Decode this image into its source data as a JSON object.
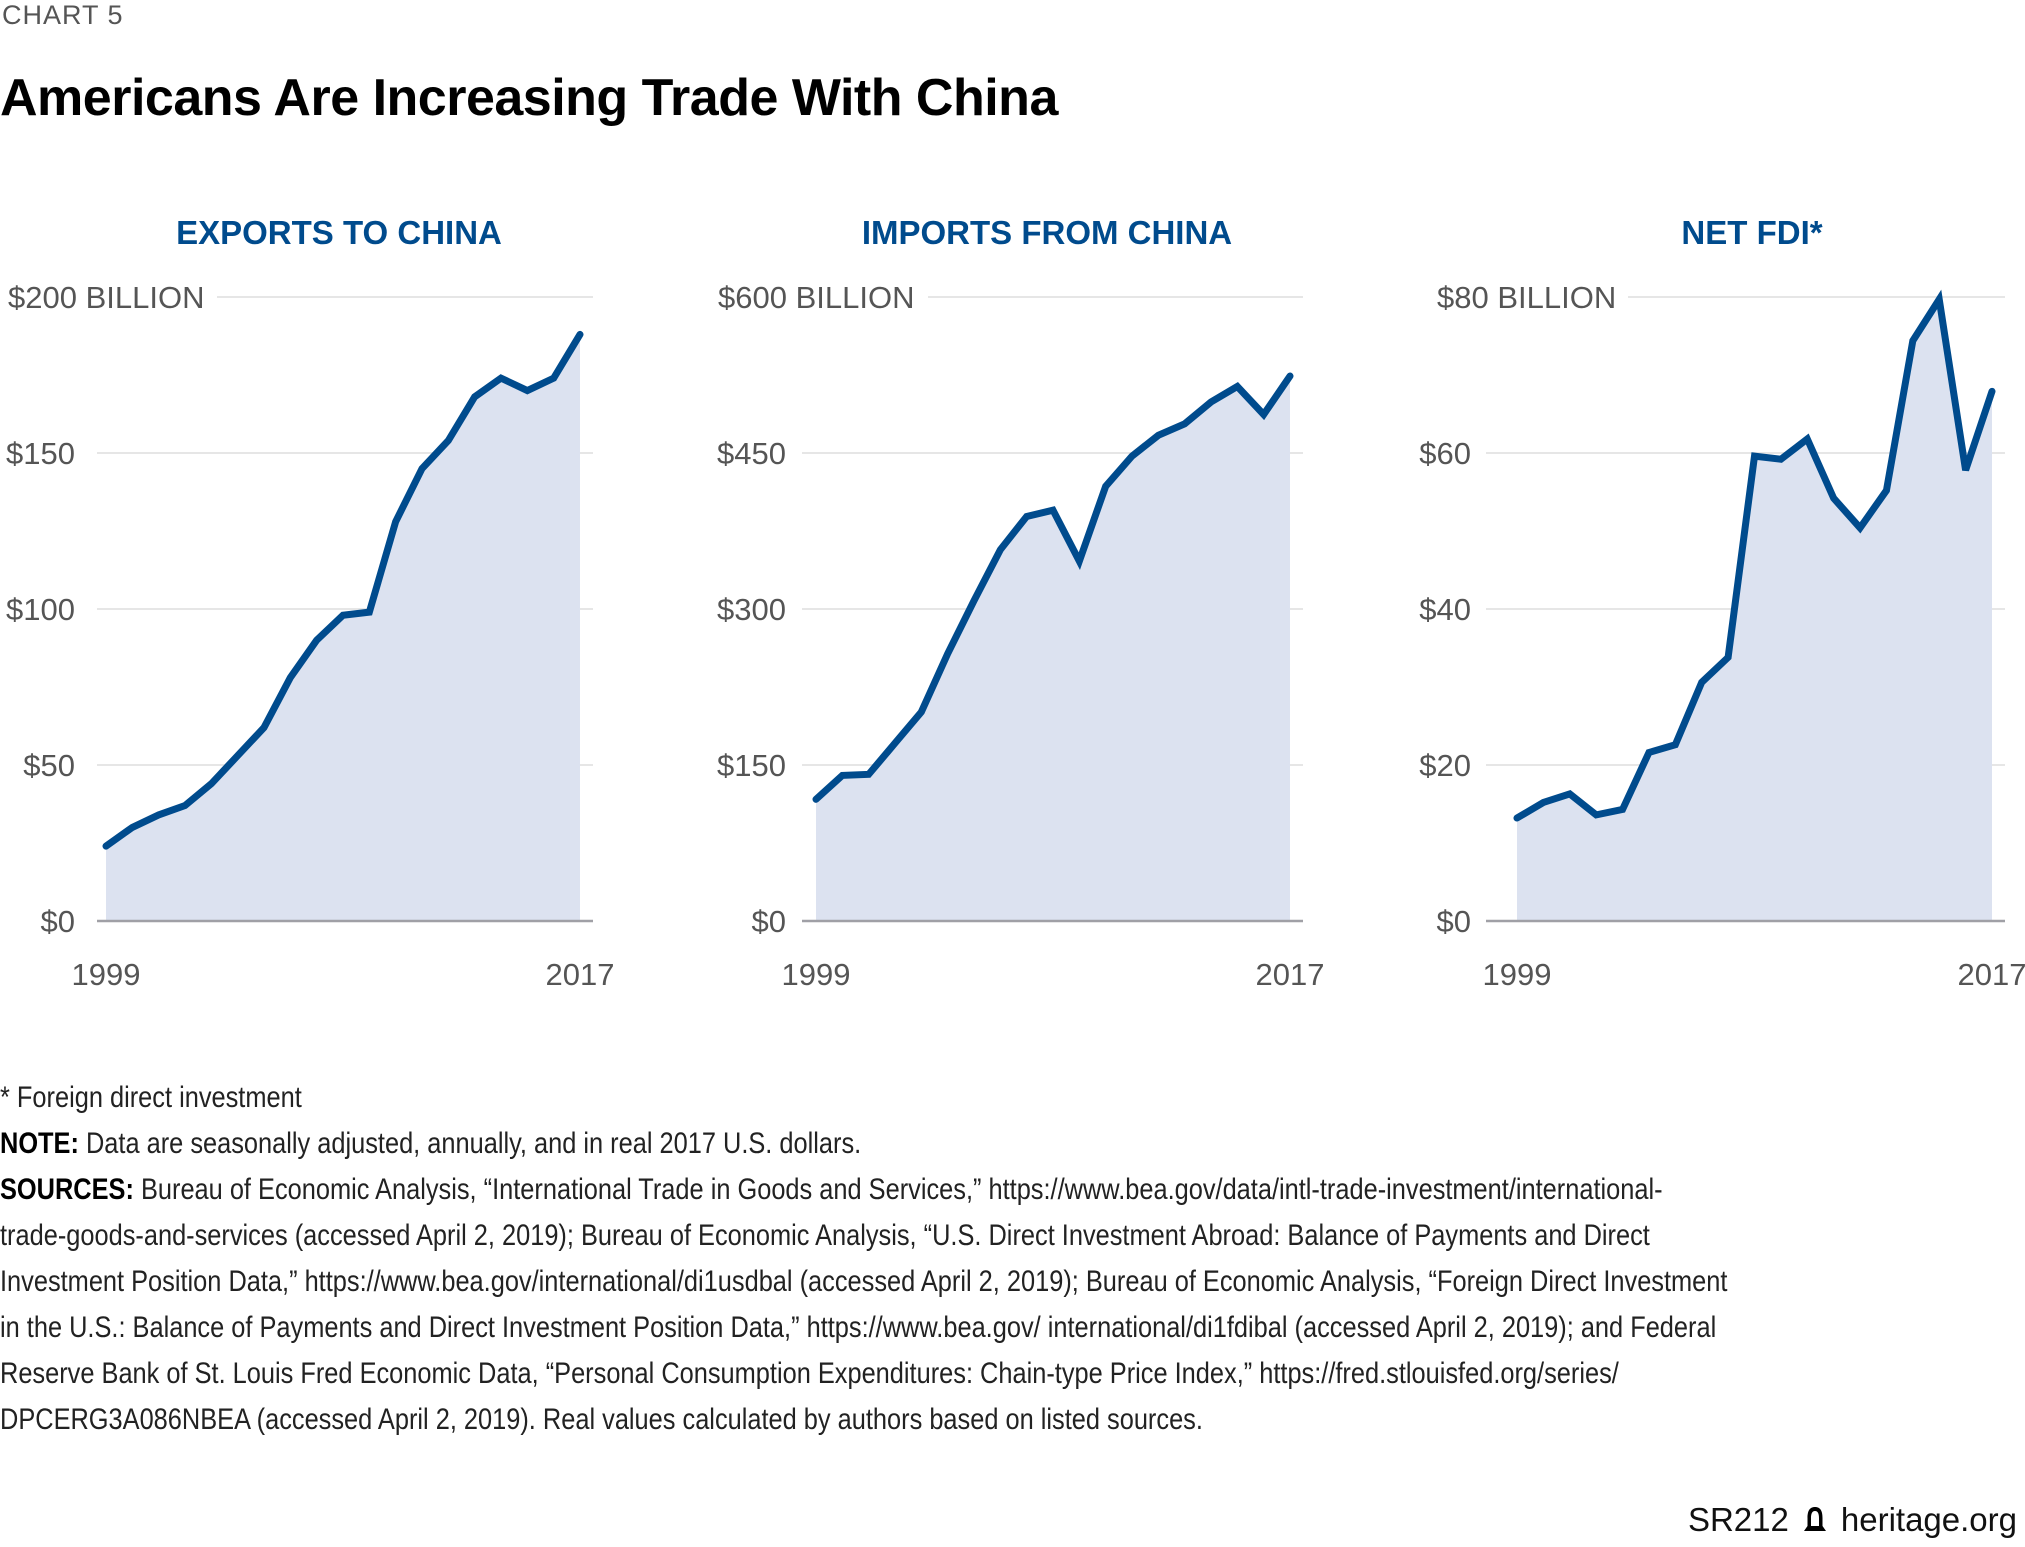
{
  "header": {
    "kicker": "CHART 5",
    "title": "Americans Are Increasing Trade With China"
  },
  "chart_data": [
    {
      "type": "area",
      "title": "EXPORTS TO CHINA",
      "xlabel": "",
      "ylabel": "",
      "x": [
        1999,
        2000,
        2001,
        2002,
        2003,
        2004,
        2005,
        2006,
        2007,
        2008,
        2009,
        2010,
        2011,
        2012,
        2013,
        2014,
        2015,
        2016,
        2017
      ],
      "values": [
        24,
        30,
        34,
        37,
        44,
        53,
        62,
        78,
        90,
        98,
        99,
        128,
        145,
        154,
        168,
        174,
        170,
        174,
        188
      ],
      "ylim": [
        0,
        200
      ],
      "yticks": [
        0,
        50,
        100,
        150,
        200
      ],
      "ytick_labels": [
        "$0",
        "$50",
        "$100",
        "$150",
        "$200 BILLION"
      ],
      "xtick_labels": [
        "1999",
        "2017"
      ],
      "grid": true
    },
    {
      "type": "area",
      "title": "IMPORTS FROM CHINA",
      "xlabel": "",
      "ylabel": "",
      "x": [
        1999,
        2000,
        2001,
        2002,
        2003,
        2004,
        2005,
        2006,
        2007,
        2008,
        2009,
        2010,
        2011,
        2012,
        2013,
        2014,
        2015,
        2016,
        2017
      ],
      "values": [
        117,
        140,
        141,
        171,
        201,
        257,
        308,
        357,
        389,
        395,
        346,
        418,
        447,
        467,
        478,
        499,
        514,
        487,
        524
      ],
      "ylim": [
        0,
        600
      ],
      "yticks": [
        0,
        150,
        300,
        450,
        600
      ],
      "ytick_labels": [
        "$0",
        "$150",
        "$300",
        "$450",
        "$600 BILLION"
      ],
      "xtick_labels": [
        "1999",
        "2017"
      ],
      "grid": true
    },
    {
      "type": "area",
      "title": "NET FDI*",
      "xlabel": "",
      "ylabel": "",
      "x": [
        1999,
        2000,
        2001,
        2002,
        2003,
        2004,
        2005,
        2006,
        2007,
        2008,
        2009,
        2010,
        2011,
        2012,
        2013,
        2014,
        2015,
        2016,
        2017
      ],
      "values": [
        13.2,
        15.2,
        16.3,
        13.6,
        14.3,
        21.6,
        22.6,
        30.6,
        33.8,
        59.6,
        59.2,
        61.8,
        54.2,
        50.4,
        55.2,
        74.4,
        79.7,
        57.8,
        67.9
      ],
      "ylim": [
        0,
        80
      ],
      "yticks": [
        0,
        20,
        40,
        60,
        80
      ],
      "ytick_labels": [
        "$0",
        "$20",
        "$40",
        "$60",
        "$80 BILLION"
      ],
      "xtick_labels": [
        "1999",
        "2017"
      ],
      "grid": true
    }
  ],
  "colors": {
    "line": "#004b8d",
    "fill": "#dce2f0",
    "grid": "#e6e6e6",
    "axis": "#a0a0a6",
    "title": "#004b8d"
  },
  "footer": {
    "footnote": "* Foreign direct investment",
    "note_label": "NOTE:",
    "note_text": " Data are seasonally adjusted, annually, and in real 2017 U.S. dollars.",
    "sources_label": "SOURCES:",
    "sources_lines": [
      " Bureau of Economic Analysis, “International Trade in Goods and Services,” https://www.bea.gov/data/intl-trade-investment/international-",
      "trade-goods-and-services (accessed April 2, 2019); Bureau of Economic Analysis, “U.S. Direct Investment Abroad: Balance of Payments and Direct",
      "Investment Position Data,” https://www.bea.gov/international/di1usdbal (accessed April 2, 2019); Bureau of Economic Analysis, “Foreign Direct Investment",
      "in the U.S.: Balance of Payments and Direct Investment Position Data,” https://www.bea.gov/ international/di1fdibal (accessed April 2, 2019); and Federal",
      "Reserve Bank of St. Louis Fred Economic Data, “Personal Consumption Expenditures: Chain-type Price Index,” https://fred.stlouisfed.org/series/",
      "DPCERG3A086NBEA (accessed April 2, 2019). Real values calculated by authors based on listed sources."
    ]
  },
  "credit": {
    "report_id": "SR212",
    "logo_icon": "liberty-bell-icon",
    "site": "heritage.org"
  }
}
